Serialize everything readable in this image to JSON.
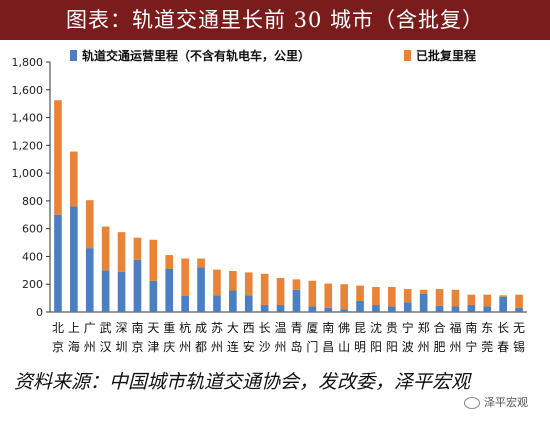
{
  "header": {
    "title": "图表：轨道交通里长前 30 城市（含批复）"
  },
  "source": {
    "text": "资料来源：中国城市轨道交通协会，发改委，泽平宏观"
  },
  "watermark": {
    "text": "泽平宏观",
    "icon": "wechat-icon"
  },
  "chart_data": {
    "type": "bar",
    "stacked": true,
    "categories": [
      [
        "北",
        "京"
      ],
      [
        "上",
        "海"
      ],
      [
        "广",
        "州"
      ],
      [
        "武",
        "汉"
      ],
      [
        "深",
        "圳"
      ],
      [
        "南",
        "京"
      ],
      [
        "天",
        "津"
      ],
      [
        "重",
        "庆"
      ],
      [
        "杭",
        "州"
      ],
      [
        "成",
        "都"
      ],
      [
        "苏",
        "州"
      ],
      [
        "大",
        "连"
      ],
      [
        "西",
        "安"
      ],
      [
        "长",
        "沙"
      ],
      [
        "温",
        "州"
      ],
      [
        "青",
        "岛"
      ],
      [
        "厦",
        "门"
      ],
      [
        "南",
        "昌"
      ],
      [
        "佛",
        "山"
      ],
      [
        "昆",
        "明"
      ],
      [
        "沈",
        "阳"
      ],
      [
        "贵",
        "阳"
      ],
      [
        "宁",
        "波"
      ],
      [
        "郑",
        "州"
      ],
      [
        "合",
        "肥"
      ],
      [
        "福",
        "州"
      ],
      [
        "南",
        "宁"
      ],
      [
        "东",
        "莞"
      ],
      [
        "长",
        "春"
      ],
      [
        "无",
        "锡"
      ]
    ],
    "series": [
      {
        "name": "轨道交通运营里程（不含有轨电车，公里）",
        "color": "#4a7fc1",
        "values": [
          700,
          760,
          460,
          300,
          290,
          375,
          225,
          310,
          115,
          320,
          120,
          155,
          120,
          50,
          50,
          160,
          40,
          30,
          20,
          80,
          50,
          40,
          70,
          130,
          45,
          40,
          50,
          40,
          110,
          30
        ]
      },
      {
        "name": "已批复里程",
        "color": "#e8833a",
        "values": [
          825,
          395,
          345,
          315,
          285,
          160,
          295,
          100,
          270,
          65,
          185,
          140,
          165,
          225,
          195,
          75,
          185,
          175,
          180,
          110,
          130,
          140,
          95,
          30,
          120,
          120,
          75,
          85,
          10,
          95
        ]
      }
    ],
    "ylim": [
      0,
      1800
    ],
    "yticks": [
      "0",
      "200",
      "400",
      "600",
      "800",
      "1,000",
      "1,200",
      "1,400",
      "1,600",
      "1,800"
    ],
    "ytick_values": [
      0,
      200,
      400,
      600,
      800,
      1000,
      1200,
      1400,
      1600,
      1800
    ],
    "legend_position": "top"
  }
}
